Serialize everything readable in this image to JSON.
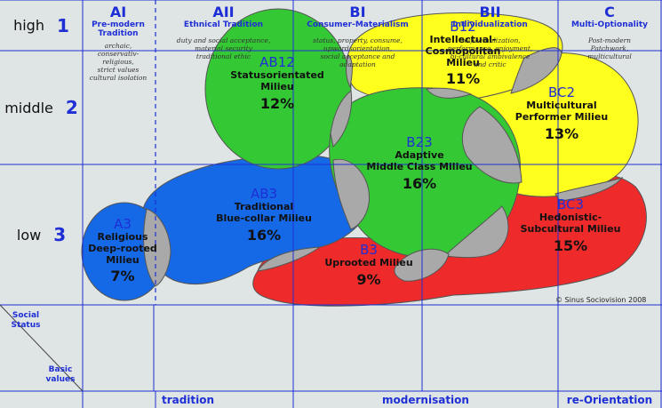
{
  "rows": [
    {
      "label": "high",
      "number": "1"
    },
    {
      "label": "middle",
      "number": "2"
    },
    {
      "label": "low",
      "number": "3"
    }
  ],
  "milieus": [
    {
      "code": "B12",
      "name1": "Intellectual-",
      "name2": "Cosmopolitan",
      "name3": "Milieu",
      "pct": "11%",
      "color": "#ffff1e"
    },
    {
      "code": "AB12",
      "name1": "Statusorientated",
      "name2": "Milieu",
      "pct": "12%",
      "color": "#34c834"
    },
    {
      "code": "BC2",
      "name1": "Multicultural",
      "name2": "Performer Milieu",
      "pct": "13%",
      "color": "#ffff1e"
    },
    {
      "code": "B23",
      "name1": "Adaptive",
      "name2": "Middle Class Milieu",
      "pct": "16%",
      "color": "#34c834"
    },
    {
      "code": "AB3",
      "name1": "Traditional",
      "name2": "Blue-collar Milieu",
      "pct": "16%",
      "color": "#1568e6"
    },
    {
      "code": "BC3",
      "name1": "Hedonistic-",
      "name2": "Subcultural Milieu",
      "pct": "15%",
      "color": "#ef2a2a"
    },
    {
      "code": "A3",
      "name1": "Religious",
      "name2": "Deep-rooted",
      "name3": "Milieu",
      "pct": "7%",
      "color": "#1568e6"
    },
    {
      "code": "B3",
      "name1": "Uprooted Milieu",
      "pct": "9%",
      "color": "#ef2a2a"
    }
  ],
  "copyright": "© Sinus Sociovision 2008",
  "axis": {
    "social_status_1": "Social",
    "social_status_2": "Status",
    "basic_values_1": "Basic",
    "basic_values_2": "values"
  },
  "columns": [
    {
      "code": "AI",
      "title1": "Pre-modern",
      "title2": "Tradition",
      "desc": [
        "archaic,",
        "conservativ-",
        "religious,",
        "strict values",
        "cultural isolation"
      ]
    },
    {
      "code": "AII",
      "title1": "Ethnical Tradition",
      "desc": [
        "duty and social acceptance,",
        "material security",
        "traditional ethic"
      ]
    },
    {
      "code": "BI",
      "title1": "Consumer-Materialism",
      "desc": [
        "status, property, consume,",
        "upwardsorientation,",
        "social acceptance and",
        "adaptation"
      ]
    },
    {
      "code": "BII",
      "title1": "Individualization",
      "desc": [
        "Self-actualization,",
        "performance, enjoyment,",
        "bi-cultural ambivalence",
        "and critic"
      ]
    },
    {
      "code": "C",
      "title1": "Multi-Optionality",
      "desc": [
        "Post-modern",
        "Patchwork,",
        "multicultural"
      ]
    }
  ],
  "footer": [
    "tradition",
    "modernisation",
    "re-Orientation"
  ],
  "colors": {
    "accent_blue": "#1f2fd6",
    "green": "#34c834",
    "yellow": "#ffff1e",
    "blue": "#1568e6",
    "red": "#ef2a2a",
    "overlap_grey": "#a9a9a9",
    "background": "#dfe4e4"
  }
}
